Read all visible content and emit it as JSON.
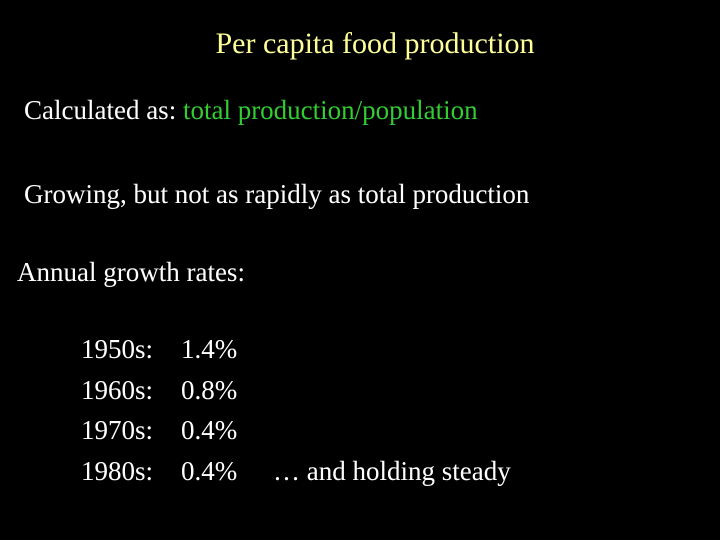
{
  "slide": {
    "title": "Per capita food production",
    "calculated_prefix": "Calculated as: ",
    "calculated_formula": "total production/population",
    "growing_text": "Growing, but not as rapidly as total production",
    "annual_heading": "Annual growth rates:",
    "rates": [
      {
        "decade": "1950s:",
        "value": "1.4%",
        "note": ""
      },
      {
        "decade": "1960s:",
        "value": "0.8%",
        "note": ""
      },
      {
        "decade": "1970s:",
        "value": "0.4%",
        "note": ""
      },
      {
        "decade": "1980s:",
        "value": "0.4%",
        "note": "… and holding steady"
      }
    ]
  },
  "colors": {
    "background": "#000000",
    "title": "#FFFF99",
    "body_text": "#FFFFFF",
    "formula": "#33CC33"
  }
}
